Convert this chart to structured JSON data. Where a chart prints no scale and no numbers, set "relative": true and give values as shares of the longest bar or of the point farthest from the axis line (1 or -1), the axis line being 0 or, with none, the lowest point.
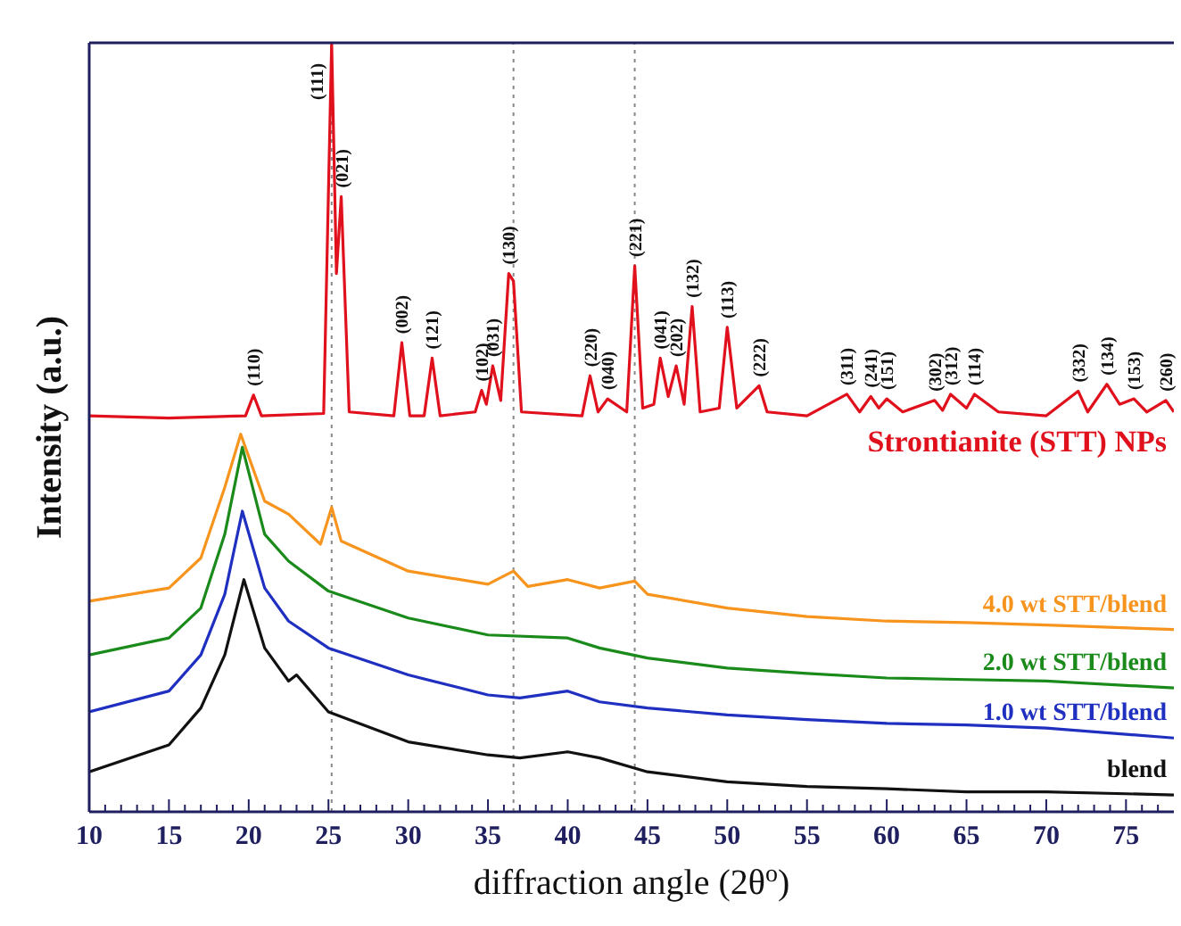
{
  "chart_data": {
    "type": "line",
    "relative": true,
    "xlabel": "diffraction angle (2θ$^{o}$)",
    "ylabel": "Intensity (a.u.)",
    "xlim": [
      10,
      78
    ],
    "xticks": [
      10,
      {
        "value": 11,
        "label": null
      },
      {
        "value": 12,
        "label": null
      },
      {
        "value": 13,
        "label": null
      },
      {
        "value": 14,
        "label": null
      },
      15,
      {
        "value": 16,
        "label": null
      },
      {
        "value": 17,
        "label": null
      },
      {
        "value": 18,
        "label": null
      },
      {
        "value": 19,
        "label": null
      },
      20,
      {
        "value": 21,
        "label": null
      },
      {
        "value": 22,
        "label": null
      },
      {
        "value": 23,
        "label": null
      },
      {
        "value": 24,
        "label": null
      },
      25,
      {
        "value": 26,
        "label": null
      },
      {
        "value": 27,
        "label": null
      },
      {
        "value": 28,
        "label": null
      },
      {
        "value": 29,
        "label": null
      },
      30,
      {
        "value": 31,
        "label": null
      },
      {
        "value": 32,
        "label": null
      },
      {
        "value": 33,
        "label": null
      },
      {
        "value": 34,
        "label": null
      },
      35,
      {
        "value": 36,
        "label": null
      },
      {
        "value": 37,
        "label": null
      },
      {
        "value": 38,
        "label": null
      },
      {
        "value": 39,
        "label": null
      },
      40,
      {
        "value": 41,
        "label": null
      },
      {
        "value": 42,
        "label": null
      },
      {
        "value": 43,
        "label": null
      },
      {
        "value": 44,
        "label": null
      },
      45,
      {
        "value": 46,
        "label": null
      },
      {
        "value": 47,
        "label": null
      },
      {
        "value": 48,
        "label": null
      },
      {
        "value": 49,
        "label": null
      },
      50,
      {
        "value": 51,
        "label": null
      },
      {
        "value": 52,
        "label": null
      },
      {
        "value": 53,
        "label": null
      },
      {
        "value": 54,
        "label": null
      },
      55,
      {
        "value": 56,
        "label": null
      },
      {
        "value": 57,
        "label": null
      },
      {
        "value": 58,
        "label": null
      },
      {
        "value": 59,
        "label": null
      },
      60,
      {
        "value": 61,
        "label": null
      },
      {
        "value": 62,
        "label": null
      },
      {
        "value": 63,
        "label": null
      },
      {
        "value": 64,
        "label": null
      },
      65,
      {
        "value": 66,
        "label": null
      },
      {
        "value": 67,
        "label": null
      },
      {
        "value": 68,
        "label": null
      },
      {
        "value": 69,
        "label": null
      },
      70,
      {
        "value": 71,
        "label": null
      },
      {
        "value": 72,
        "label": null
      },
      {
        "value": 73,
        "label": null
      },
      {
        "value": 74,
        "label": null
      },
      75,
      {
        "value": 76,
        "label": null
      },
      {
        "value": 77,
        "label": null
      }
    ],
    "legend": false,
    "grid": false,
    "marker": "none",
    "line_style": "solid",
    "series": [
      {
        "name": "Strontianite (STT) NPs",
        "color": "#e0101c",
        "x": [
          10,
          15,
          19.8,
          20.3,
          20.8,
          24.7,
          25.2,
          25.5,
          25.8,
          26.3,
          29.1,
          29.6,
          30.1,
          31,
          31.5,
          32,
          34.2,
          34.6,
          34.9,
          35.3,
          35.8,
          36.3,
          36.6,
          37.1,
          40.9,
          41.4,
          41.9,
          42.5,
          43.7,
          44.2,
          44.7,
          45.4,
          45.8,
          46.3,
          46.8,
          47.3,
          47.8,
          48.3,
          49.5,
          50,
          50.6,
          52,
          52.5,
          55,
          57.5,
          58.3,
          59,
          59.5,
          60,
          61,
          63,
          63.5,
          64,
          65,
          65.5,
          67,
          70,
          72,
          72.6,
          73.8,
          74.6,
          75.5,
          76.3,
          77.5,
          78
        ],
        "values": [
          0.515,
          0.512,
          0.515,
          0.542,
          0.515,
          0.518,
          1.0,
          0.7,
          0.8,
          0.52,
          0.515,
          0.61,
          0.515,
          0.515,
          0.59,
          0.515,
          0.52,
          0.548,
          0.53,
          0.58,
          0.535,
          0.7,
          0.69,
          0.52,
          0.515,
          0.567,
          0.52,
          0.537,
          0.52,
          0.71,
          0.525,
          0.53,
          0.59,
          0.54,
          0.58,
          0.53,
          0.657,
          0.52,
          0.525,
          0.63,
          0.525,
          0.554,
          0.52,
          0.515,
          0.543,
          0.52,
          0.54,
          0.525,
          0.537,
          0.52,
          0.535,
          0.522,
          0.543,
          0.525,
          0.543,
          0.52,
          0.515,
          0.547,
          0.52,
          0.556,
          0.53,
          0.537,
          0.52,
          0.535,
          0.52
        ]
      },
      {
        "name": "4.0 wt STT/blend",
        "color": "#f7941d",
        "x": [
          10,
          15,
          17,
          18.5,
          19.5,
          21,
          22.5,
          24.5,
          25.2,
          25.8,
          30,
          35,
          36.6,
          37.5,
          40,
          42,
          44.2,
          45,
          50,
          55,
          60,
          65,
          70,
          78
        ],
        "values": [
          0.274,
          0.291,
          0.33,
          0.422,
          0.491,
          0.404,
          0.387,
          0.348,
          0.396,
          0.352,
          0.313,
          0.296,
          0.313,
          0.293,
          0.302,
          0.291,
          0.3,
          0.283,
          0.265,
          0.254,
          0.248,
          0.246,
          0.243,
          0.237
        ]
      },
      {
        "name": "2.0 wt STT/blend",
        "color": "#1a8a1a",
        "x": [
          10,
          15,
          17,
          18.5,
          19.6,
          21,
          22.5,
          25,
          30,
          35,
          40,
          42,
          45,
          50,
          55,
          60,
          65,
          70,
          78
        ],
        "values": [
          0.204,
          0.226,
          0.265,
          0.361,
          0.474,
          0.361,
          0.326,
          0.287,
          0.252,
          0.23,
          0.226,
          0.213,
          0.2,
          0.187,
          0.18,
          0.174,
          0.172,
          0.17,
          0.161
        ]
      },
      {
        "name": "1.0 wt STT/blend",
        "color": "#1f2fc0",
        "x": [
          10,
          15,
          17,
          18.5,
          19.6,
          21,
          22.5,
          25,
          30,
          35,
          37,
          40,
          42,
          45,
          50,
          55,
          60,
          65,
          70,
          78
        ],
        "values": [
          0.13,
          0.157,
          0.204,
          0.283,
          0.391,
          0.291,
          0.248,
          0.213,
          0.178,
          0.152,
          0.148,
          0.157,
          0.143,
          0.135,
          0.126,
          0.12,
          0.115,
          0.113,
          0.109,
          0.096
        ]
      },
      {
        "name": "blend",
        "color": "#111111",
        "x": [
          10,
          15,
          17,
          18.5,
          19.7,
          21,
          22.5,
          23,
          25,
          30,
          35,
          37,
          40,
          42,
          45,
          50,
          55,
          60,
          65,
          70,
          78
        ],
        "values": [
          0.052,
          0.087,
          0.135,
          0.204,
          0.302,
          0.213,
          0.17,
          0.178,
          0.13,
          0.091,
          0.074,
          0.07,
          0.078,
          0.07,
          0.052,
          0.039,
          0.033,
          0.03,
          0.026,
          0.026,
          0.022
        ]
      }
    ],
    "ref_lines": [
      {
        "axis": "x",
        "value": 25.2,
        "color": "#888888",
        "line_style": "dotted"
      },
      {
        "axis": "x",
        "value": 36.6,
        "color": "#888888",
        "line_style": "dotted"
      },
      {
        "axis": "x",
        "value": 44.2,
        "color": "#888888",
        "line_style": "dotted"
      }
    ],
    "annotations": [
      {
        "text": "(110)",
        "x": 20.3,
        "y": 0.542
      },
      {
        "text": "(111)",
        "x": 25.2,
        "y": 1.0
      },
      {
        "text": "(021)",
        "x": 25.8,
        "y": 0.8
      },
      {
        "text": "(002)",
        "x": 29.6,
        "y": 0.61
      },
      {
        "text": "(121)",
        "x": 31.5,
        "y": 0.59
      },
      {
        "text": "(102)",
        "x": 34.6,
        "y": 0.548
      },
      {
        "text": "(031)",
        "x": 35.3,
        "y": 0.58
      },
      {
        "text": "(130)",
        "x": 36.3,
        "y": 0.7
      },
      {
        "text": "(220)",
        "x": 41.4,
        "y": 0.567
      },
      {
        "text": "(040)",
        "x": 42.5,
        "y": 0.537
      },
      {
        "text": "(221)",
        "x": 44.2,
        "y": 0.71
      },
      {
        "text": "(041)",
        "x": 45.8,
        "y": 0.59
      },
      {
        "text": "(202)",
        "x": 46.8,
        "y": 0.58
      },
      {
        "text": "(132)",
        "x": 47.8,
        "y": 0.657
      },
      {
        "text": "(113)",
        "x": 50,
        "y": 0.63
      },
      {
        "text": "(222)",
        "x": 52,
        "y": 0.554
      },
      {
        "text": "(311)",
        "x": 57.5,
        "y": 0.543
      },
      {
        "text": "(241)",
        "x": 59,
        "y": 0.54
      },
      {
        "text": "(151)",
        "x": 60,
        "y": 0.537
      },
      {
        "text": "(302)",
        "x": 63,
        "y": 0.535
      },
      {
        "text": "(312)",
        "x": 64,
        "y": 0.543
      },
      {
        "text": "(114)",
        "x": 65.5,
        "y": 0.543
      },
      {
        "text": "(332)",
        "x": 72,
        "y": 0.547
      },
      {
        "text": "(134)",
        "x": 73.8,
        "y": 0.556
      },
      {
        "text": "(153)",
        "x": 75.5,
        "y": 0.537
      },
      {
        "text": "(260)",
        "x": 77.5,
        "y": 0.535
      }
    ]
  }
}
